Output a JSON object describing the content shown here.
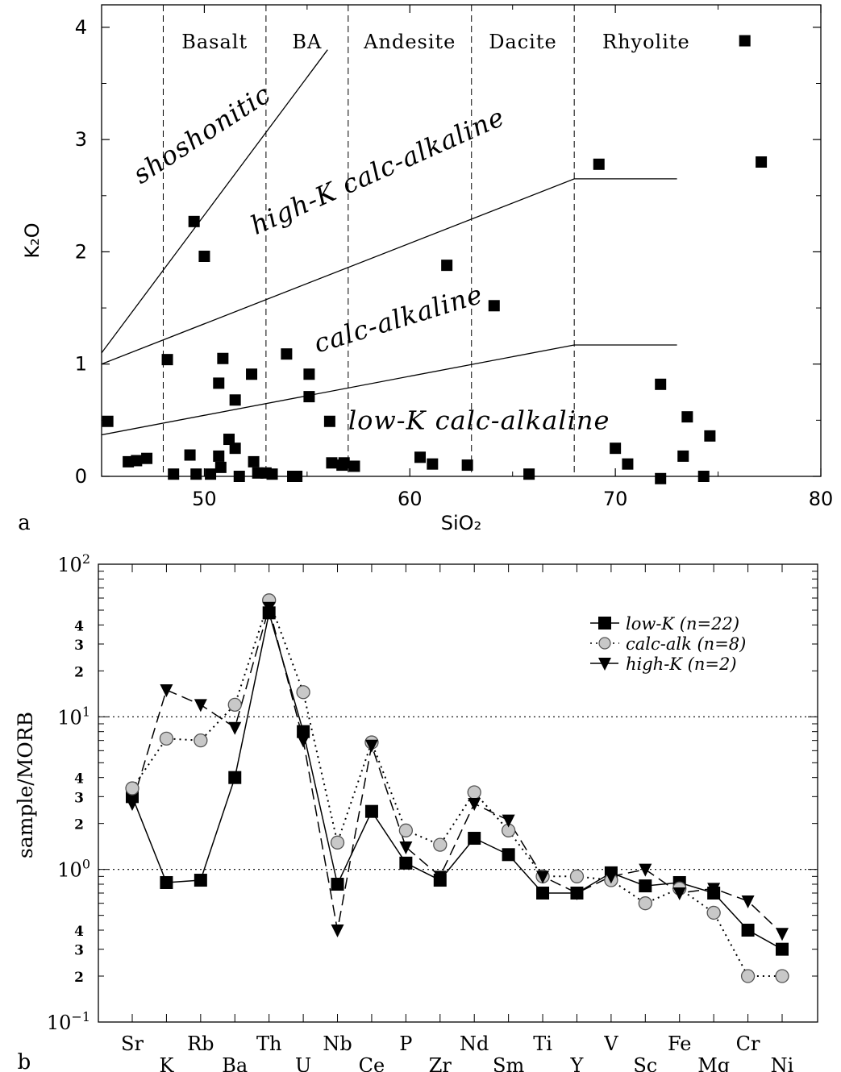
{
  "chart_data": [
    {
      "type": "scatter",
      "panel_label": "a",
      "xlabel": "SiO₂",
      "ylabel": "K₂O",
      "xlim": [
        45,
        80
      ],
      "ylim": [
        0,
        4.2
      ],
      "xticks": [
        50,
        60,
        70,
        80
      ],
      "yticks": [
        0,
        1,
        2,
        3,
        4
      ],
      "fields": [
        {
          "label": "Basalt",
          "x": 50.5
        },
        {
          "label": "BA",
          "x": 55
        },
        {
          "label": "Andesite",
          "x": 60
        },
        {
          "label": "Dacite",
          "x": 65.5
        },
        {
          "label": "Rhyolite",
          "x": 71.5
        }
      ],
      "field_boundaries_x": [
        48,
        53,
        57,
        63,
        68
      ],
      "series_labels": [
        {
          "label": "shoshonitic",
          "x": 46.9,
          "y": 2.6,
          "rotate": -33
        },
        {
          "label": "high-K calc-alkaline",
          "x": 52.5,
          "y": 2.15,
          "rotate": -24
        },
        {
          "label": "calc-alkaline",
          "x": 55.5,
          "y": 1.1,
          "rotate": -17
        },
        {
          "label": "low-K calc-alkaline",
          "x": 57,
          "y": 0.42,
          "rotate": 0
        }
      ],
      "lines": [
        {
          "points": [
            [
              45,
              1.1
            ],
            [
              56,
              3.8
            ]
          ]
        },
        {
          "points": [
            [
              45,
              1.0
            ],
            [
              68,
              2.65
            ],
            [
              73,
              2.65
            ]
          ]
        },
        {
          "points": [
            [
              45,
              0.37
            ],
            [
              68,
              1.17
            ],
            [
              73,
              1.17
            ]
          ]
        }
      ],
      "points": [
        [
          45.3,
          0.49
        ],
        [
          46.3,
          0.13
        ],
        [
          46.7,
          0.14
        ],
        [
          47.2,
          0.16
        ],
        [
          48.2,
          1.04
        ],
        [
          48.5,
          0.02
        ],
        [
          49.3,
          0.19
        ],
        [
          49.5,
          2.27
        ],
        [
          49.6,
          0.02
        ],
        [
          50.0,
          1.96
        ],
        [
          50.3,
          0.02
        ],
        [
          50.7,
          0.83
        ],
        [
          50.7,
          0.18
        ],
        [
          50.8,
          0.08
        ],
        [
          50.9,
          1.05
        ],
        [
          51.2,
          0.33
        ],
        [
          51.5,
          0.68
        ],
        [
          51.5,
          0.25
        ],
        [
          51.7,
          0.0
        ],
        [
          52.3,
          0.91
        ],
        [
          52.4,
          0.13
        ],
        [
          52.6,
          0.03
        ],
        [
          53.0,
          0.03
        ],
        [
          53.3,
          0.02
        ],
        [
          54.0,
          1.09
        ],
        [
          54.3,
          0.0
        ],
        [
          54.5,
          0.0
        ],
        [
          55.1,
          0.91
        ],
        [
          55.1,
          0.71
        ],
        [
          56.1,
          0.49
        ],
        [
          56.2,
          0.12
        ],
        [
          56.7,
          0.1
        ],
        [
          56.8,
          0.12
        ],
        [
          57.3,
          0.09
        ],
        [
          60.5,
          0.17
        ],
        [
          61.1,
          0.11
        ],
        [
          61.8,
          1.88
        ],
        [
          62.8,
          0.1
        ],
        [
          64.1,
          1.52
        ],
        [
          65.8,
          0.02
        ],
        [
          69.2,
          2.78
        ],
        [
          70.0,
          0.25
        ],
        [
          70.6,
          0.11
        ],
        [
          72.2,
          0.82
        ],
        [
          72.2,
          -0.02
        ],
        [
          73.3,
          0.18
        ],
        [
          73.5,
          0.53
        ],
        [
          74.3,
          0.0
        ],
        [
          74.6,
          0.36
        ],
        [
          76.3,
          3.88
        ],
        [
          77.1,
          2.8
        ]
      ]
    },
    {
      "type": "line",
      "panel_label": "b",
      "ylabel": "sample/MORB",
      "yscale": "log",
      "ylim": [
        0.1,
        100
      ],
      "ytick_labels": [
        {
          "base": "10",
          "exp": "2",
          "v": 100
        },
        {
          "base": "10",
          "exp": "1",
          "v": 10
        },
        {
          "base": "10",
          "exp": "0",
          "v": 1
        },
        {
          "base": "10",
          "exp": "−1",
          "v": 0.1
        }
      ],
      "minor_tick_labels": [
        {
          "text": "4",
          "v": 40
        },
        {
          "text": "3",
          "v": 30
        },
        {
          "text": "2",
          "v": 20
        },
        {
          "text": "4",
          "v": 4
        },
        {
          "text": "3",
          "v": 3
        },
        {
          "text": "2",
          "v": 2
        },
        {
          "text": "4",
          "v": 0.4
        },
        {
          "text": "3",
          "v": 0.3
        },
        {
          "text": "2",
          "v": 0.2
        }
      ],
      "categories": [
        "Sr",
        "K",
        "Rb",
        "Ba",
        "Th",
        "U",
        "Nb",
        "Ce",
        "P",
        "Zr",
        "Nd",
        "Sm",
        "Ti",
        "Y",
        "V",
        "Sc",
        "Fe",
        "Mg",
        "Cr",
        "Ni"
      ],
      "legend_position": "top-right",
      "series": [
        {
          "name": "low-K (n=22)",
          "marker": "square",
          "dash": "solid",
          "color": "#000000",
          "values": [
            3.0,
            0.82,
            0.85,
            4.0,
            48,
            8.0,
            0.8,
            2.4,
            1.1,
            0.85,
            1.6,
            1.25,
            0.7,
            0.7,
            0.95,
            0.78,
            0.82,
            0.7,
            0.4,
            0.3
          ]
        },
        {
          "name": "calc-alk (n=8)",
          "marker": "circle",
          "dash": "dotted",
          "color": "#c8c8c8",
          "values": [
            3.4,
            7.2,
            7.0,
            12.0,
            58,
            14.5,
            1.5,
            6.8,
            1.8,
            1.45,
            3.2,
            1.8,
            0.9,
            0.9,
            0.85,
            0.6,
            0.75,
            0.52,
            0.2,
            0.2
          ]
        },
        {
          "name": "high-K (n=2)",
          "marker": "triangle",
          "dash": "dashed",
          "color": "#000000",
          "values": [
            2.7,
            15.0,
            12.0,
            8.5,
            52,
            7.0,
            0.4,
            6.5,
            1.4,
            0.9,
            2.7,
            2.1,
            0.9,
            0.7,
            0.9,
            1.0,
            0.7,
            0.75,
            0.62,
            0.38
          ]
        }
      ]
    }
  ]
}
